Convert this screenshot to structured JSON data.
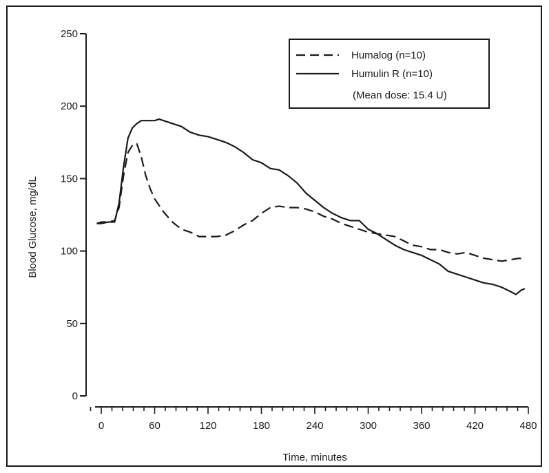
{
  "chart_data": {
    "type": "line",
    "title": "",
    "xlabel": "Time, minutes",
    "ylabel": "Blood Glucose, mg/dL",
    "xlim": [
      0,
      480
    ],
    "ylim": [
      0,
      250
    ],
    "x_ticks": [
      0,
      60,
      120,
      180,
      240,
      300,
      360,
      420,
      480
    ],
    "x_minor_step": 12,
    "y_ticks": [
      0,
      50,
      100,
      150,
      200,
      250
    ],
    "grid": false,
    "legend": {
      "placement": "top-right",
      "note": "(Mean dose: 15.4 U)"
    },
    "series": [
      {
        "name": "Humalog (n=10)",
        "style": "dashed",
        "color": "#1a1a1a",
        "points": [
          [
            -5,
            119
          ],
          [
            0,
            120
          ],
          [
            8,
            120
          ],
          [
            15,
            121
          ],
          [
            20,
            130
          ],
          [
            25,
            152
          ],
          [
            30,
            168
          ],
          [
            36,
            174
          ],
          [
            40,
            174
          ],
          [
            45,
            165
          ],
          [
            50,
            152
          ],
          [
            55,
            143
          ],
          [
            60,
            136
          ],
          [
            70,
            127
          ],
          [
            80,
            120
          ],
          [
            90,
            115
          ],
          [
            100,
            113
          ],
          [
            110,
            110
          ],
          [
            120,
            110
          ],
          [
            130,
            110
          ],
          [
            140,
            111
          ],
          [
            150,
            114
          ],
          [
            160,
            118
          ],
          [
            170,
            121
          ],
          [
            180,
            126
          ],
          [
            190,
            130
          ],
          [
            200,
            131
          ],
          [
            210,
            130
          ],
          [
            220,
            130
          ],
          [
            230,
            129
          ],
          [
            240,
            127
          ],
          [
            250,
            124
          ],
          [
            260,
            122
          ],
          [
            270,
            119
          ],
          [
            280,
            117
          ],
          [
            290,
            115
          ],
          [
            300,
            113
          ],
          [
            310,
            112
          ],
          [
            320,
            111
          ],
          [
            330,
            110
          ],
          [
            340,
            107
          ],
          [
            350,
            104
          ],
          [
            360,
            103
          ],
          [
            370,
            101
          ],
          [
            380,
            101
          ],
          [
            390,
            99
          ],
          [
            400,
            98
          ],
          [
            410,
            99
          ],
          [
            420,
            97
          ],
          [
            430,
            95
          ],
          [
            440,
            94
          ],
          [
            450,
            93
          ],
          [
            460,
            94
          ],
          [
            470,
            95
          ],
          [
            476,
            94
          ]
        ]
      },
      {
        "name": "Humulin R (n=10)",
        "style": "solid",
        "color": "#1a1a1a",
        "points": [
          [
            -5,
            119
          ],
          [
            0,
            119
          ],
          [
            8,
            120
          ],
          [
            15,
            120
          ],
          [
            20,
            133
          ],
          [
            25,
            158
          ],
          [
            30,
            178
          ],
          [
            35,
            185
          ],
          [
            40,
            188
          ],
          [
            45,
            190
          ],
          [
            50,
            190
          ],
          [
            60,
            190
          ],
          [
            65,
            191
          ],
          [
            70,
            190
          ],
          [
            80,
            188
          ],
          [
            90,
            186
          ],
          [
            100,
            182
          ],
          [
            110,
            180
          ],
          [
            120,
            179
          ],
          [
            130,
            177
          ],
          [
            140,
            175
          ],
          [
            150,
            172
          ],
          [
            160,
            168
          ],
          [
            170,
            163
          ],
          [
            180,
            161
          ],
          [
            190,
            157
          ],
          [
            200,
            156
          ],
          [
            210,
            152
          ],
          [
            220,
            147
          ],
          [
            230,
            140
          ],
          [
            240,
            135
          ],
          [
            250,
            130
          ],
          [
            260,
            126
          ],
          [
            270,
            123
          ],
          [
            280,
            121
          ],
          [
            290,
            121
          ],
          [
            300,
            115
          ],
          [
            310,
            112
          ],
          [
            320,
            108
          ],
          [
            330,
            104
          ],
          [
            340,
            101
          ],
          [
            350,
            99
          ],
          [
            360,
            97
          ],
          [
            370,
            94
          ],
          [
            380,
            91
          ],
          [
            390,
            86
          ],
          [
            400,
            84
          ],
          [
            410,
            82
          ],
          [
            420,
            80
          ],
          [
            430,
            78
          ],
          [
            440,
            77
          ],
          [
            450,
            75
          ],
          [
            460,
            72
          ],
          [
            466,
            70
          ],
          [
            472,
            73
          ],
          [
            476,
            74
          ]
        ]
      }
    ]
  }
}
